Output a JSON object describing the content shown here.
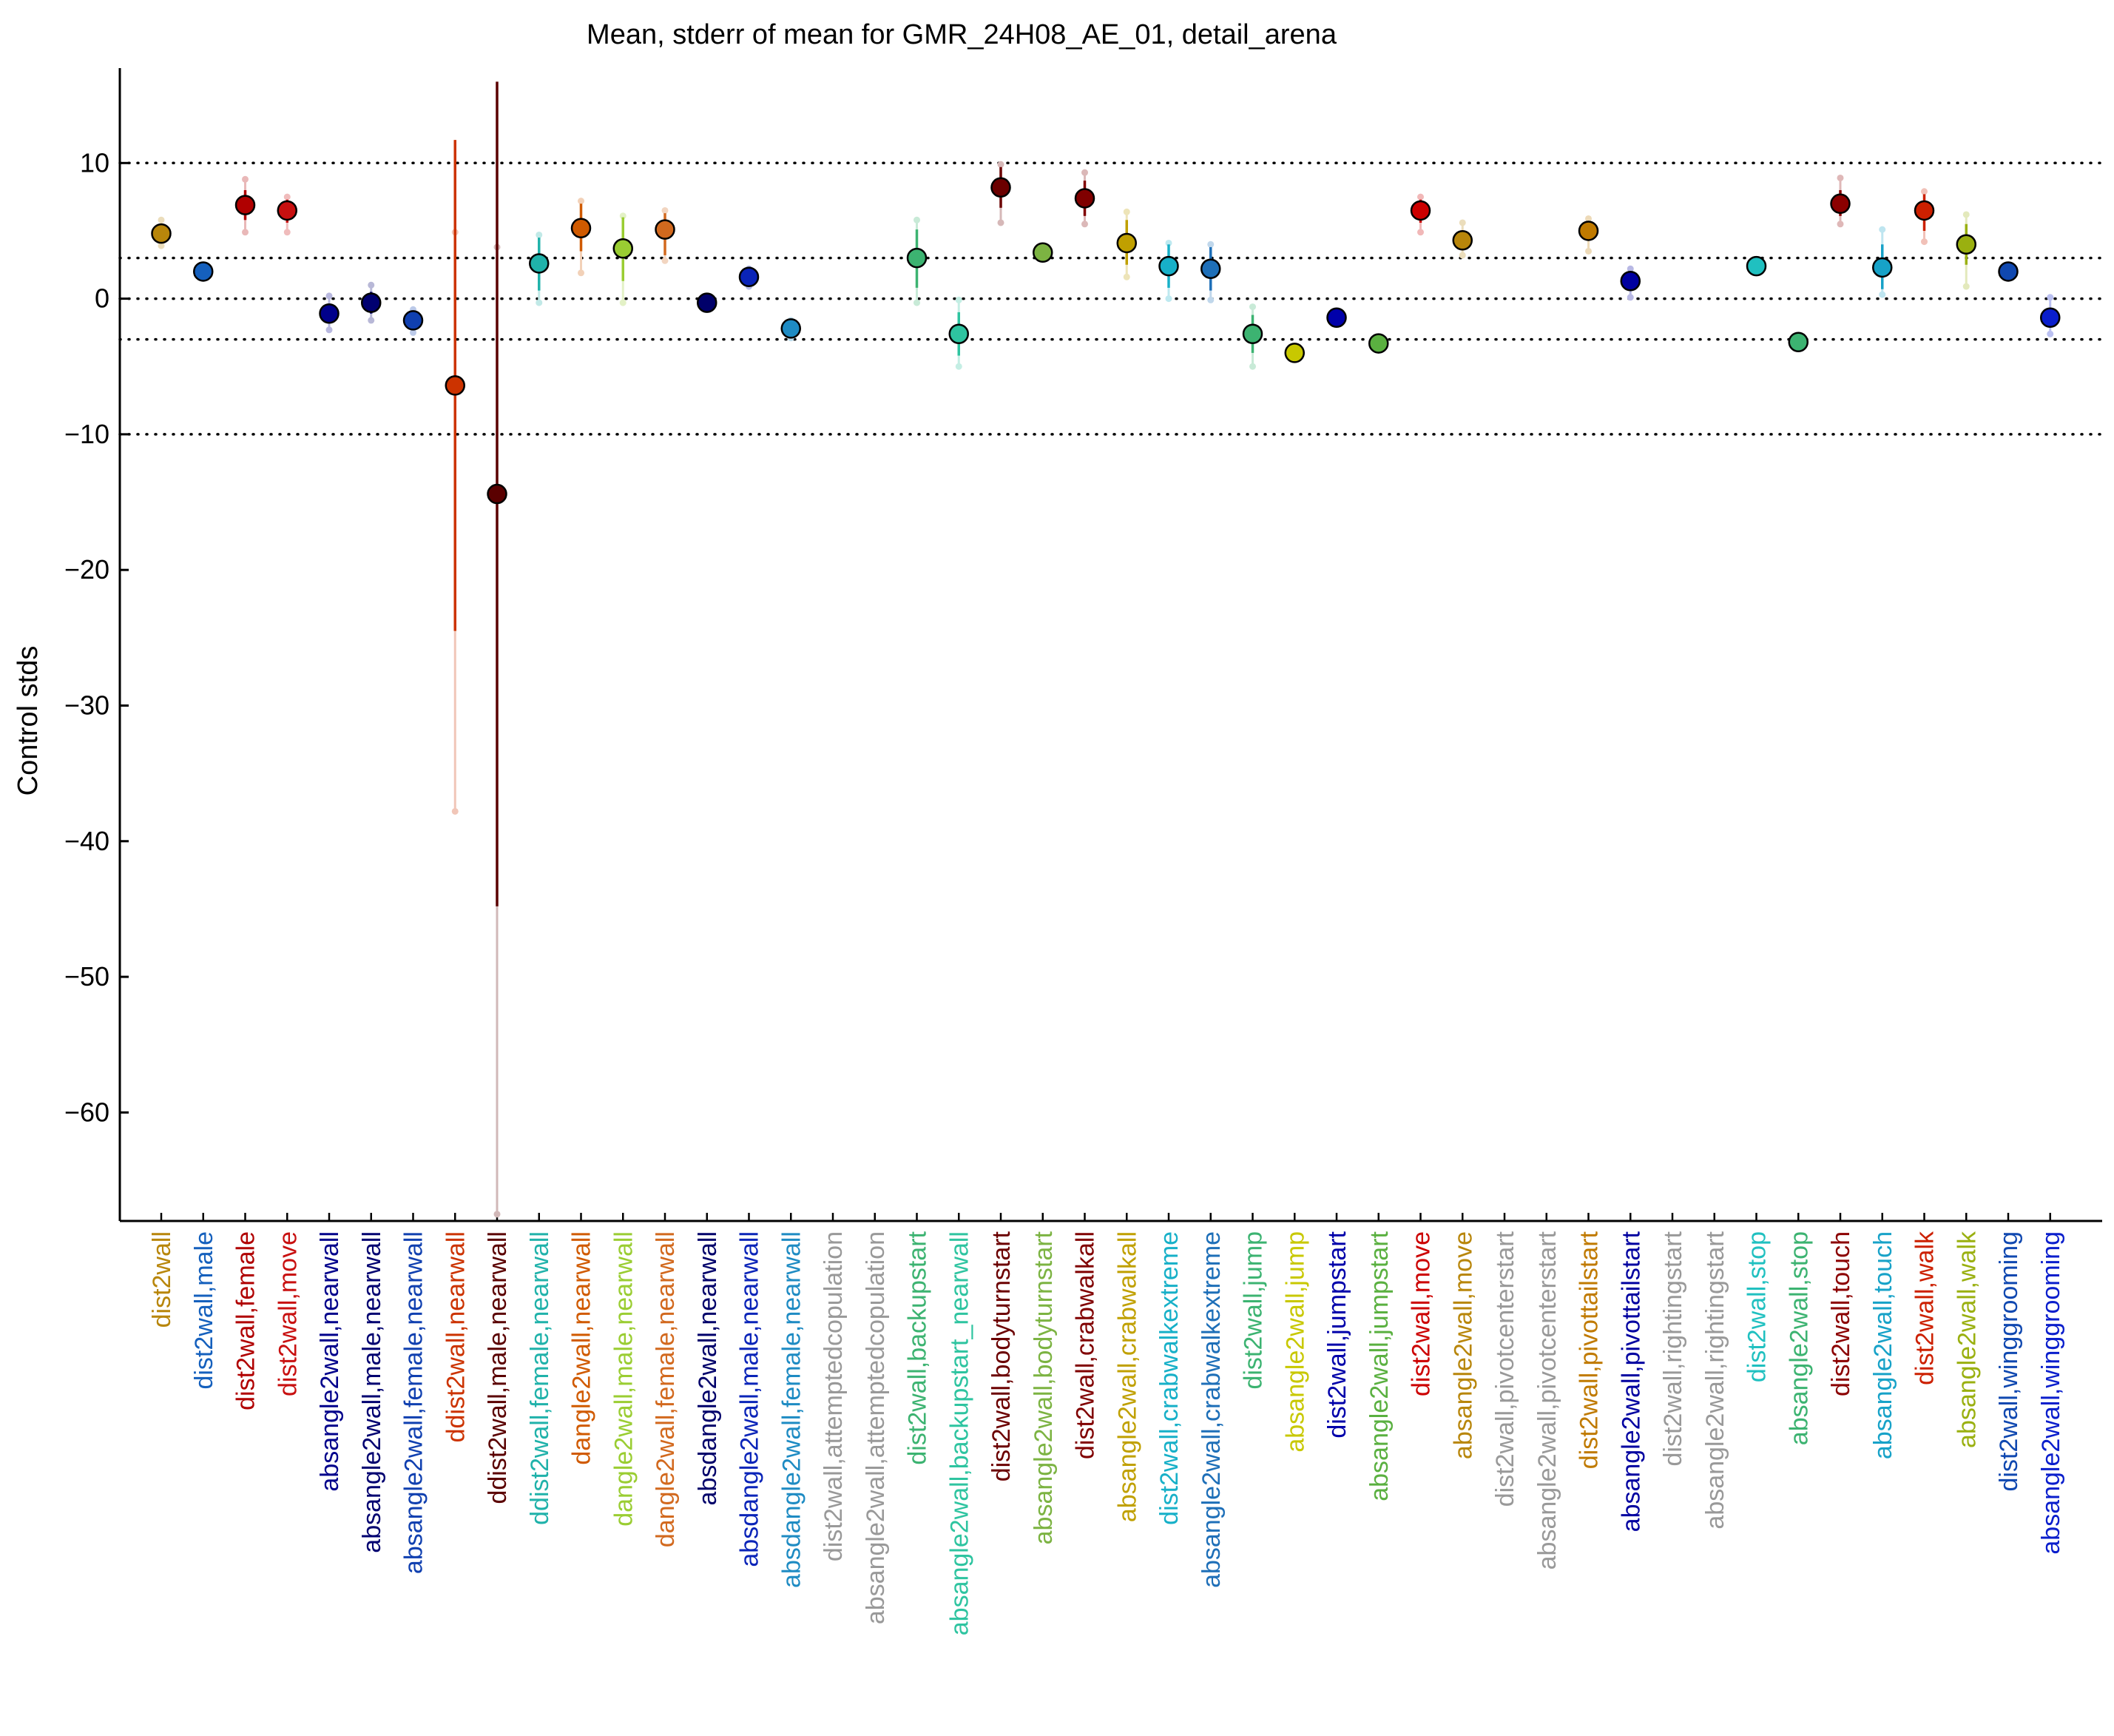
{
  "chart_data": {
    "type": "scatter",
    "title": "Mean, stderr of mean for GMR_24H08_AE_01, detail_arena",
    "ylabel": "Control stds",
    "xlabel": "",
    "ylim": [
      -68,
      17
    ],
    "yticks": [
      10,
      0,
      -10,
      -20,
      -30,
      -40,
      -50,
      -60
    ],
    "ytick_labels": [
      "10",
      "0",
      "−10",
      "−20",
      "−30",
      "−40",
      "−50",
      "−60"
    ],
    "reference_lines": [
      10,
      3,
      0,
      -3,
      -10
    ],
    "grid": false,
    "legend": "none",
    "points": [
      {
        "label": "dist2wall",
        "color": "#B8860B",
        "mean": 4.8,
        "err_low": 4.2,
        "err_high": 5.4,
        "ext_low": 3.9,
        "ext_high": 5.8
      },
      {
        "label": "dist2wall,male",
        "color": "#1560BD",
        "mean": 2.0,
        "err_low": 1.7,
        "err_high": 2.3,
        "ext_low": 1.5,
        "ext_high": 2.5
      },
      {
        "label": "dist2wall,female",
        "color": "#B00000",
        "mean": 6.9,
        "err_low": 5.8,
        "err_high": 8.0,
        "ext_low": 4.9,
        "ext_high": 8.8
      },
      {
        "label": "dist2wall,move",
        "color": "#C81010",
        "mean": 6.5,
        "err_low": 5.6,
        "err_high": 7.3,
        "ext_low": 4.9,
        "ext_high": 7.5
      },
      {
        "label": "absangle2wall,nearwall",
        "color": "#00008B",
        "mean": -1.1,
        "err_low": -1.7,
        "err_high": -0.5,
        "ext_low": -2.3,
        "ext_high": 0.2
      },
      {
        "label": "absangle2wall,male,nearwall",
        "color": "#000070",
        "mean": -0.3,
        "err_low": -1.1,
        "err_high": 0.5,
        "ext_low": -1.6,
        "ext_high": 1.0
      },
      {
        "label": "absangle2wall,female,nearwall",
        "color": "#1040B0",
        "mean": -1.6,
        "err_low": -2.0,
        "err_high": -1.2,
        "ext_low": -2.5,
        "ext_high": -0.8
      },
      {
        "label": "ddist2wall,nearwall",
        "color": "#CC3300",
        "mean": -6.4,
        "err_low": -24.5,
        "err_high": 11.7,
        "ext_low": -37.8,
        "ext_high": 4.9
      },
      {
        "label": "ddist2wall,male,nearwall",
        "color": "#5A0000",
        "mean": -14.4,
        "err_low": -44.8,
        "err_high": 16.0,
        "ext_low": -67.5,
        "ext_high": 3.8
      },
      {
        "label": "ddist2wall,female,nearwall",
        "color": "#20B2AA",
        "mean": 2.6,
        "err_low": 0.6,
        "err_high": 4.5,
        "ext_low": -0.3,
        "ext_high": 4.7
      },
      {
        "label": "dangle2wall,nearwall",
        "color": "#D05A00",
        "mean": 5.2,
        "err_low": 3.5,
        "err_high": 7.0,
        "ext_low": 1.9,
        "ext_high": 7.2
      },
      {
        "label": "dangle2wall,male,nearwall",
        "color": "#9ACD32",
        "mean": 3.7,
        "err_low": 1.3,
        "err_high": 6.0,
        "ext_low": -0.3,
        "ext_high": 6.1
      },
      {
        "label": "dangle2wall,female,nearwall",
        "color": "#D2691E",
        "mean": 5.1,
        "err_low": 3.2,
        "err_high": 6.3,
        "ext_low": 2.8,
        "ext_high": 6.5
      },
      {
        "label": "absdangle2wall,nearwall",
        "color": "#00006A",
        "mean": -0.3,
        "err_low": -0.6,
        "err_high": 0.0,
        "ext_low": -0.8,
        "ext_high": 0.2
      },
      {
        "label": "absdangle2wall,male,nearwall",
        "color": "#0A24B8",
        "mean": 1.6,
        "err_low": 1.2,
        "err_high": 2.0,
        "ext_low": 0.9,
        "ext_high": 2.2
      },
      {
        "label": "absdangle2wall,female,nearwall",
        "color": "#1E8BC3",
        "mean": -2.2,
        "err_low": -2.6,
        "err_high": -1.8,
        "ext_low": -2.9,
        "ext_high": -1.6
      },
      {
        "label": "dist2wall,attemptedcopulation",
        "color": "#999999"
      },
      {
        "label": "absangle2wall,attemptedcopulation",
        "color": "#999999"
      },
      {
        "label": "dist2wall,backupstart",
        "color": "#3CB371",
        "mean": 3.0,
        "err_low": 0.8,
        "err_high": 5.1,
        "ext_low": -0.3,
        "ext_high": 5.8
      },
      {
        "label": "absangle2wall,backupstart_nearwall",
        "color": "#2EC4A0",
        "mean": -2.6,
        "err_low": -4.2,
        "err_high": -1.0,
        "ext_low": -5.0,
        "ext_high": -0.1
      },
      {
        "label": "dist2wall,bodyturnstart",
        "color": "#6B0000",
        "mean": 8.2,
        "err_low": 6.7,
        "err_high": 9.7,
        "ext_low": 5.6,
        "ext_high": 9.9
      },
      {
        "label": "absangle2wall,bodyturnstart",
        "color": "#7CB342",
        "mean": 3.4,
        "err_low": 3.1,
        "err_high": 3.7,
        "ext_low": 2.9,
        "ext_high": 3.9
      },
      {
        "label": "dist2wall,crabwalkall",
        "color": "#800000",
        "mean": 7.4,
        "err_low": 6.1,
        "err_high": 8.7,
        "ext_low": 5.5,
        "ext_high": 9.3
      },
      {
        "label": "absangle2wall,crabwalkall",
        "color": "#C0A000",
        "mean": 4.1,
        "err_low": 2.5,
        "err_high": 5.8,
        "ext_low": 1.6,
        "ext_high": 6.4
      },
      {
        "label": "dist2wall,crabwalkextreme",
        "color": "#17B0C8",
        "mean": 2.4,
        "err_low": 0.8,
        "err_high": 4.0,
        "ext_low": 0.0,
        "ext_high": 4.1
      },
      {
        "label": "absangle2wall,crabwalkextreme",
        "color": "#1E6FB8",
        "mean": 2.2,
        "err_low": 0.6,
        "err_high": 3.8,
        "ext_low": -0.1,
        "ext_high": 4.0
      },
      {
        "label": "dist2wall,jump",
        "color": "#3CB371",
        "mean": -2.6,
        "err_low": -4.0,
        "err_high": -1.2,
        "ext_low": -5.0,
        "ext_high": -0.6
      },
      {
        "label": "absangle2wall,jump",
        "color": "#C8C800",
        "mean": -4.0,
        "err_low": -4.3,
        "err_high": -3.7,
        "ext_low": -4.5,
        "ext_high": -3.5
      },
      {
        "label": "dist2wall,jumpstart",
        "color": "#0000AA",
        "mean": -1.4,
        "err_low": -1.7,
        "err_high": -1.1,
        "ext_low": -1.9,
        "ext_high": -0.9
      },
      {
        "label": "absangle2wall,jumpstart",
        "color": "#5AB040",
        "mean": -3.3,
        "err_low": -3.6,
        "err_high": -3.0,
        "ext_low": -3.8,
        "ext_high": -2.8
      },
      {
        "label": "dist2wall,move",
        "color": "#CC0000",
        "mean": 6.5,
        "err_low": 5.6,
        "err_high": 7.3,
        "ext_low": 4.9,
        "ext_high": 7.5
      },
      {
        "label": "absangle2wall,move",
        "color": "#B8860B",
        "mean": 4.3,
        "err_low": 3.6,
        "err_high": 5.0,
        "ext_low": 3.2,
        "ext_high": 5.6
      },
      {
        "label": "dist2wall,pivotcenterstart",
        "color": "#999999"
      },
      {
        "label": "absangle2wall,pivotcenterstart",
        "color": "#999999"
      },
      {
        "label": "dist2wall,pivottailstart",
        "color": "#C07A00",
        "mean": 5.0,
        "err_low": 4.3,
        "err_high": 5.7,
        "ext_low": 3.5,
        "ext_high": 5.9
      },
      {
        "label": "absangle2wall,pivottailstart",
        "color": "#0000A0",
        "mean": 1.3,
        "err_low": 0.6,
        "err_high": 2.0,
        "ext_low": 0.1,
        "ext_high": 2.2
      },
      {
        "label": "dist2wall,rightingstart",
        "color": "#999999"
      },
      {
        "label": "absangle2wall,rightingstart",
        "color": "#999999"
      },
      {
        "label": "dist2wall,stop",
        "color": "#20C0C0",
        "mean": 2.4,
        "err_low": 2.1,
        "err_high": 2.7,
        "ext_low": 1.9,
        "ext_high": 2.9
      },
      {
        "label": "absangle2wall,stop",
        "color": "#3CB371",
        "mean": -3.2,
        "err_low": -3.5,
        "err_high": -2.9,
        "ext_low": -3.7,
        "ext_high": -2.7
      },
      {
        "label": "dist2wall,touch",
        "color": "#8B0000",
        "mean": 7.0,
        "err_low": 6.1,
        "err_high": 8.0,
        "ext_low": 5.5,
        "ext_high": 8.9
      },
      {
        "label": "absangle2wall,touch",
        "color": "#17A2C8",
        "mean": 2.3,
        "err_low": 0.7,
        "err_high": 4.0,
        "ext_low": 0.3,
        "ext_high": 5.1
      },
      {
        "label": "dist2wall,walk",
        "color": "#CC2000",
        "mean": 6.5,
        "err_low": 5.0,
        "err_high": 7.7,
        "ext_low": 4.2,
        "ext_high": 7.9
      },
      {
        "label": "absangle2wall,walk",
        "color": "#9AB010",
        "mean": 4.0,
        "err_low": 2.5,
        "err_high": 5.5,
        "ext_low": 0.9,
        "ext_high": 6.2
      },
      {
        "label": "dist2wall,winggrooming",
        "color": "#1048B0",
        "mean": 2.0,
        "err_low": 1.7,
        "err_high": 2.3,
        "ext_low": 1.5,
        "ext_high": 2.5
      },
      {
        "label": "absangle2wall,winggrooming",
        "color": "#0A1ECC",
        "mean": -1.4,
        "err_low": -2.0,
        "err_high": -0.8,
        "ext_low": -2.6,
        "ext_high": 0.1
      }
    ]
  }
}
